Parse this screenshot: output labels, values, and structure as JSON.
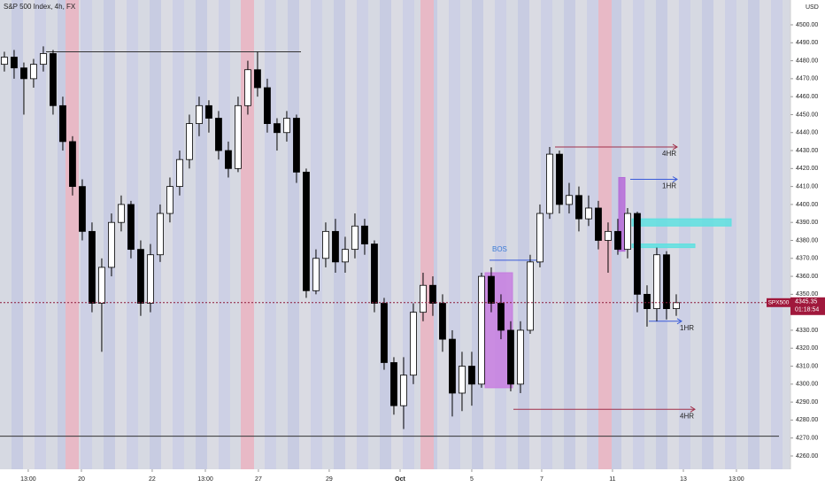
{
  "chart_data": {
    "type": "candlestick",
    "title": "S&P 500 Index, 4h, FX",
    "currency": "USD",
    "symbol": "SPX500",
    "last_price": 4345.35,
    "countdown": "01:18:54",
    "up_color": "#ffffff",
    "down_color": "#000000",
    "open": [
      4478,
      4482,
      4476,
      4470,
      4478,
      4484,
      4455,
      4435,
      4410,
      4385,
      4345,
      4365,
      4390,
      4400,
      4375,
      4345,
      4372,
      4395,
      4410,
      4425,
      4445,
      4455,
      4448,
      4430,
      4420,
      4455,
      4475,
      4465,
      4445,
      4440,
      4448,
      4418,
      4352,
      4370,
      4385,
      4368,
      4375,
      4388,
      4378,
      4345,
      4312,
      4288,
      4305,
      4340,
      4355,
      4345,
      4325,
      4295,
      4310,
      4300,
      4360,
      4345,
      4330,
      4300,
      4330,
      4368,
      4395,
      4428,
      4400,
      4405,
      4392,
      4398,
      4380,
      4385,
      4375,
      4395,
      4350,
      4342,
      4372,
      4342
    ],
    "high": [
      4485,
      4486,
      4479,
      4481,
      4488,
      4486,
      4460,
      4438,
      4414,
      4390,
      4370,
      4395,
      4405,
      4402,
      4380,
      4378,
      4400,
      4415,
      4430,
      4450,
      4460,
      4458,
      4452,
      4435,
      4460,
      4480,
      4485,
      4470,
      4448,
      4452,
      4450,
      4420,
      4375,
      4390,
      4392,
      4382,
      4395,
      4392,
      4380,
      4348,
      4315,
      4315,
      4345,
      4362,
      4360,
      4350,
      4330,
      4318,
      4318,
      4362,
      4365,
      4350,
      4335,
      4335,
      4372,
      4400,
      4432,
      4430,
      4412,
      4410,
      4405,
      4402,
      4390,
      4392,
      4398,
      4396,
      4355,
      4376,
      4374,
      4350
    ],
    "low": [
      4474,
      4470,
      4450,
      4465,
      4474,
      4450,
      4430,
      4405,
      4380,
      4340,
      4318,
      4360,
      4385,
      4370,
      4338,
      4340,
      4368,
      4390,
      4405,
      4420,
      4438,
      4440,
      4425,
      4415,
      4418,
      4450,
      4460,
      4440,
      4430,
      4435,
      4412,
      4348,
      4350,
      4365,
      4362,
      4362,
      4370,
      4372,
      4340,
      4308,
      4283,
      4275,
      4300,
      4335,
      4338,
      4318,
      4282,
      4285,
      4288,
      4298,
      4340,
      4325,
      4296,
      4295,
      4328,
      4365,
      4392,
      4395,
      4395,
      4385,
      4388,
      4375,
      4362,
      4372,
      4370,
      4340,
      4332,
      4335,
      4336,
      4338
    ],
    "close": [
      4482,
      4476,
      4470,
      4478,
      4484,
      4455,
      4435,
      4410,
      4385,
      4345,
      4365,
      4390,
      4400,
      4375,
      4345,
      4372,
      4395,
      4410,
      4425,
      4445,
      4455,
      4448,
      4430,
      4420,
      4455,
      4475,
      4465,
      4445,
      4440,
      4448,
      4418,
      4352,
      4370,
      4385,
      4368,
      4375,
      4388,
      4378,
      4345,
      4312,
      4288,
      4305,
      4340,
      4355,
      4345,
      4325,
      4295,
      4310,
      4300,
      4360,
      4345,
      4330,
      4300,
      4330,
      4368,
      4395,
      4428,
      4400,
      4405,
      4392,
      4398,
      4380,
      4385,
      4375,
      4395,
      4350,
      4342,
      4372,
      4342,
      4345.35
    ],
    "xlim": [
      -0.45,
      80.73
    ],
    "xticks": [
      {
        "value": 2.45,
        "label": "13:00"
      },
      {
        "value": 7.91,
        "label": "20"
      },
      {
        "value": 15.18,
        "label": "22"
      },
      {
        "value": 20.64,
        "label": "13:00"
      },
      {
        "value": 26.09,
        "label": "27"
      },
      {
        "value": 33.36,
        "label": "29"
      },
      {
        "value": 40.64,
        "label": "Oct"
      },
      {
        "value": 48,
        "label": "5"
      },
      {
        "value": 55.18,
        "label": "7"
      },
      {
        "value": 62.45,
        "label": "11"
      },
      {
        "value": 69.73,
        "label": "13"
      },
      {
        "value": 75.18,
        "label": "13:00"
      }
    ],
    "ylim": [
      4252.6,
      4513.8
    ],
    "yticks": [
      {
        "value": 4260,
        "label": "4260.00"
      },
      {
        "value": 4270,
        "label": "4270.00"
      },
      {
        "value": 4280,
        "label": "4280.00"
      },
      {
        "value": 4290,
        "label": "4290.00"
      },
      {
        "value": 4300,
        "label": "4300.00"
      },
      {
        "value": 4310,
        "label": "4310.00"
      },
      {
        "value": 4320,
        "label": "4320.00"
      },
      {
        "value": 4330,
        "label": "4330.00"
      },
      {
        "value": 4340,
        "label": "4340.00"
      },
      {
        "value": 4350,
        "label": "4350.00"
      },
      {
        "value": 4360,
        "label": "4360.00"
      },
      {
        "value": 4370,
        "label": "4370.00"
      },
      {
        "value": 4380,
        "label": "4380.00"
      },
      {
        "value": 4390,
        "label": "4390.00"
      },
      {
        "value": 4400,
        "label": "4400.00"
      },
      {
        "value": 4410,
        "label": "4410.00"
      },
      {
        "value": 4420,
        "label": "4420.00"
      },
      {
        "value": 4430,
        "label": "4430.00"
      },
      {
        "value": 4440,
        "label": "4440.00"
      },
      {
        "value": 4450,
        "label": "4450.00"
      },
      {
        "value": 4460,
        "label": "4460.00"
      },
      {
        "value": 4470,
        "label": "4470.00"
      },
      {
        "value": 4480,
        "label": "4480.00"
      },
      {
        "value": 4490,
        "label": "4490.00"
      },
      {
        "value": 4500,
        "label": "4500.00"
      }
    ],
    "levels": [
      {
        "value": 4485,
        "color": "#333333"
      },
      {
        "value": 4271,
        "color": "#333333"
      },
      {
        "value": 4369,
        "color": "#3a5bd9",
        "label": "BOS"
      },
      {
        "value": 4432,
        "color": "#a0304a",
        "label": "4HR"
      },
      {
        "value": 4414,
        "color": "#3a5bd9",
        "label": "1HR"
      },
      {
        "value": 4335,
        "color": "#3a5bd9",
        "label": "1HR"
      },
      {
        "value": 4286,
        "color": "#a0304a",
        "label": "4HR"
      }
    ],
    "zones": [
      {
        "high": 4362,
        "low": 4298,
        "color": "#c77ee0"
      },
      {
        "high": 4415,
        "low": 4374,
        "color": "#b56ad8"
      },
      {
        "high": 4392,
        "low": 4388,
        "color": "#5ee0e0"
      },
      {
        "high": 4378,
        "low": 4376,
        "color": "#5ee0e0"
      }
    ]
  }
}
